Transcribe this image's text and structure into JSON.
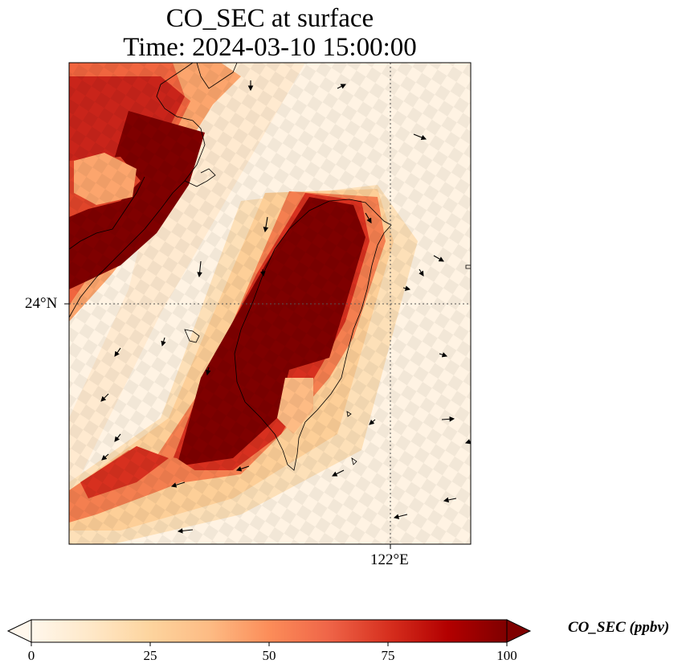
{
  "title": {
    "line1": "CO_SEC at surface",
    "line2": "Time: 2024-03-10 15:00:00"
  },
  "axes": {
    "lat_label": "24°N",
    "lon_label": "122°E"
  },
  "colorbar": {
    "label": "CO_SEC (ppbv)",
    "ticks": [
      "0",
      "25",
      "50",
      "75",
      "100"
    ],
    "range": [
      0,
      100
    ],
    "extend": "both",
    "colormap": "OrRd",
    "colors": [
      "#fff7ec",
      "#fee8c8",
      "#fdd49e",
      "#fdbb84",
      "#fc8d59",
      "#ef6548",
      "#d7301f",
      "#b30000",
      "#7f0000"
    ]
  },
  "map": {
    "gridlines": "dotted",
    "coastline": "black",
    "wind_vectors": "black arrows"
  }
}
